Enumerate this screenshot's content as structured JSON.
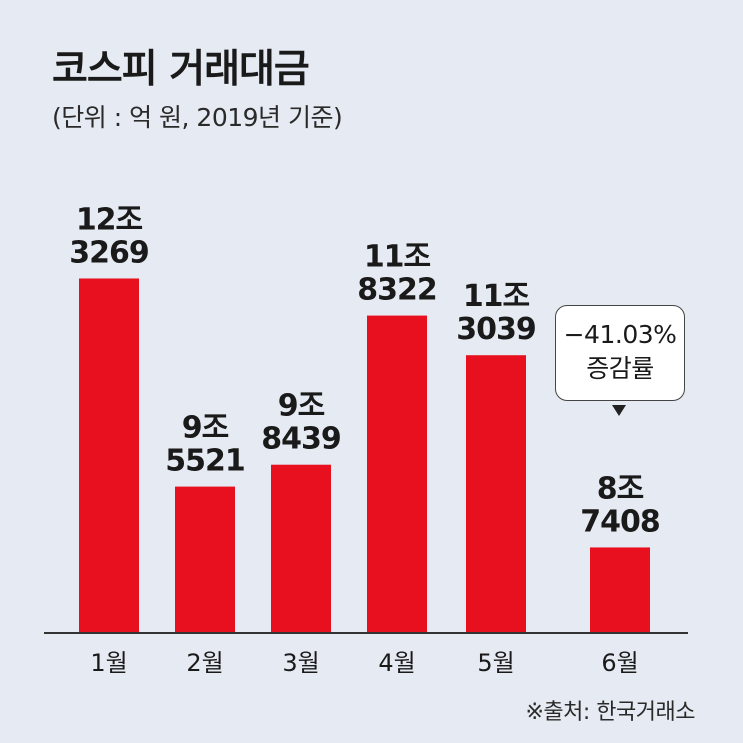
{
  "chart_data": {
    "type": "bar",
    "title": "코스피 거래대금",
    "subtitle": "(단위 : 억 원, 2019년 기준)",
    "categories": [
      "1월",
      "2월",
      "3월",
      "4월",
      "5월",
      "6월"
    ],
    "values": [
      123269,
      95521,
      98439,
      118322,
      113039,
      87408
    ],
    "value_labels": [
      [
        "12조",
        "3269"
      ],
      [
        "9조",
        "5521"
      ],
      [
        "9조",
        "8439"
      ],
      [
        "11조",
        "8322"
      ],
      [
        "11조",
        "3039"
      ],
      [
        "8조",
        "7408"
      ]
    ],
    "ylim": [
      76000,
      126000
    ],
    "grid": false,
    "bar_color": "#e8101e",
    "annotation": {
      "category": "6월",
      "lines": [
        "−41.03%",
        "증감률"
      ]
    },
    "source": "※출처: 한국거래소"
  }
}
